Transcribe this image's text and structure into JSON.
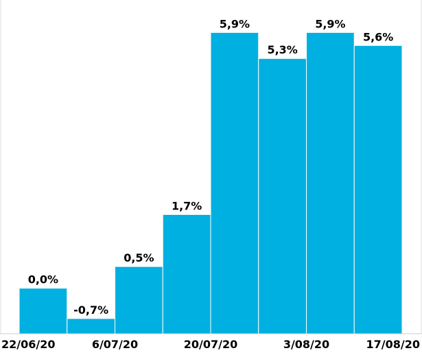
{
  "chart_data": {
    "type": "bar",
    "values": [
      0.0,
      -0.7,
      0.5,
      1.7,
      5.9,
      5.3,
      5.9,
      5.6
    ],
    "value_labels": [
      "0,0%",
      "-0,7%",
      "0,5%",
      "1,7%",
      "5,9%",
      "5,3%",
      "5,9%",
      "5,6%"
    ],
    "xtick_labels": [
      "22/06/20",
      "6/07/20",
      "20/07/20",
      "3/08/20",
      "17/08/20"
    ],
    "color": "#00b0e0",
    "ylim": [
      -1.05,
      6.65
    ]
  }
}
